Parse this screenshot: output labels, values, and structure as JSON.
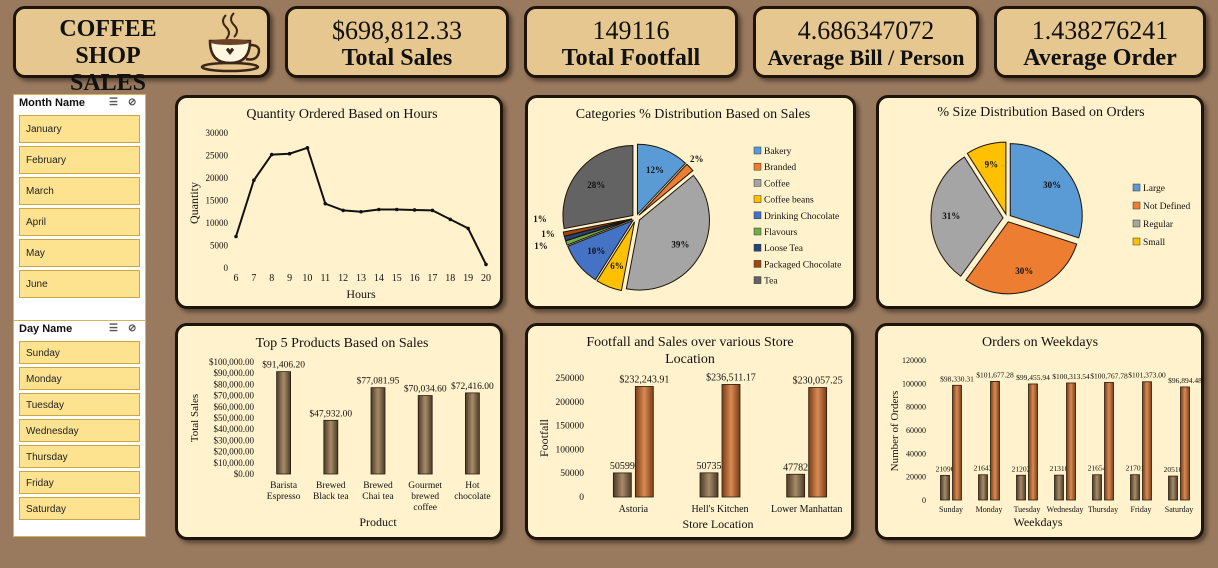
{
  "header": {
    "title_line1": "COFFEE SHOP",
    "title_line2": "SALES",
    "icon": "coffee-cup-icon",
    "kpis": [
      {
        "value": "$698,812.33",
        "label": "Total Sales"
      },
      {
        "value": "149116",
        "label": "Total Footfall"
      },
      {
        "value": "4.686347072",
        "label": "Average Bill / Person"
      },
      {
        "value": "1.438276241",
        "label": "Average Order"
      }
    ]
  },
  "slicers": {
    "month": {
      "title": "Month Name",
      "items": [
        "January",
        "February",
        "March",
        "April",
        "May",
        "June"
      ]
    },
    "day": {
      "title": "Day Name",
      "items": [
        "Sunday",
        "Monday",
        "Tuesday",
        "Wednesday",
        "Thursday",
        "Friday",
        "Saturday"
      ]
    }
  },
  "colors": {
    "line": "#111111",
    "bar_dark": "#7a654b",
    "bar_light": "#b5703f",
    "panel": "#fff2cc",
    "border": "#1e1409"
  },
  "chart_data": [
    {
      "type": "line",
      "title": "Quantity Ordered Based on Hours",
      "xlabel": "Hours",
      "ylabel": "Quantity",
      "x": [
        6,
        7,
        8,
        9,
        10,
        11,
        12,
        13,
        14,
        15,
        16,
        17,
        18,
        19,
        20
      ],
      "values": [
        7000,
        19500,
        25200,
        25400,
        26700,
        14300,
        12800,
        12500,
        13000,
        13000,
        12900,
        12800,
        10800,
        8800,
        800
      ],
      "ylim": [
        0,
        30000
      ],
      "yticks": [
        "0",
        "5000",
        "10000",
        "15000",
        "20000",
        "25000",
        "30000"
      ]
    },
    {
      "type": "pie",
      "title": "Categories % Distribution Based on Sales",
      "legend_position": "right",
      "series": [
        {
          "name": "Bakery",
          "value": 12,
          "label": "12%",
          "color": "#5b9bd5"
        },
        {
          "name": "Branded",
          "value": 2,
          "label": "2%",
          "color": "#ed7d31"
        },
        {
          "name": "Coffee",
          "value": 39,
          "label": "39%",
          "color": "#a5a5a5"
        },
        {
          "name": "Coffee beans",
          "value": 6,
          "label": "6%",
          "color": "#ffc000"
        },
        {
          "name": "Drinking Chocolate",
          "value": 10,
          "label": "10%",
          "color": "#4472c4"
        },
        {
          "name": "Flavours",
          "value": 1,
          "label": "1%",
          "color": "#70ad47"
        },
        {
          "name": "Loose Tea",
          "value": 1,
          "label": "1%",
          "color": "#264478"
        },
        {
          "name": "Packaged Chocolate",
          "value": 1,
          "label": "1%",
          "color": "#9e480e"
        },
        {
          "name": "Tea",
          "value": 28,
          "label": "28%",
          "color": "#636363"
        }
      ]
    },
    {
      "type": "pie",
      "title": "% Size Distribution Based on Orders",
      "legend_position": "right",
      "series": [
        {
          "name": "Large",
          "value": 30,
          "label": "30%",
          "color": "#5b9bd5"
        },
        {
          "name": "Not Defined",
          "value": 30,
          "label": "30%",
          "color": "#ed7d31"
        },
        {
          "name": "Regular",
          "value": 31,
          "label": "31%",
          "color": "#a5a5a5"
        },
        {
          "name": "Small",
          "value": 9,
          "label": "9%",
          "color": "#ffc000"
        }
      ]
    },
    {
      "type": "bar",
      "title": "Top 5 Products Based on Sales",
      "xlabel": "Product",
      "ylabel": "Total Sales",
      "categories": [
        "Barista Espresso",
        "Brewed Black tea",
        "Brewed Chai tea",
        "Gourmet brewed coffee",
        "Hot chocolate"
      ],
      "category_lines": [
        [
          "Barista",
          "Espresso"
        ],
        [
          "Brewed",
          "Black tea"
        ],
        [
          "Brewed",
          "Chai tea"
        ],
        [
          "Gourmet",
          "brewed",
          "coffee"
        ],
        [
          "Hot",
          "chocolate"
        ]
      ],
      "values": [
        91406.2,
        47932.0,
        77081.95,
        70034.6,
        72416.0
      ],
      "data_labels": [
        "$91,406.20",
        "$47,932.00",
        "$77,081.95",
        "$70,034.60",
        "$72,416.00"
      ],
      "ylim": [
        0,
        100000
      ],
      "yticks": [
        "$0.00",
        "$10,000.00",
        "$20,000.00",
        "$30,000.00",
        "$40,000.00",
        "$50,000.00",
        "$60,000.00",
        "$70,000.00",
        "$80,000.00",
        "$90,000.00",
        "$100,000.00"
      ]
    },
    {
      "type": "bar",
      "title_line1": "Footfall and Sales over various Store",
      "title_line2": "Location",
      "xlabel": "Store Location",
      "ylabel": "Footfall",
      "categories": [
        "Astoria",
        "Hell's Kitchen",
        "Lower Manhattan"
      ],
      "series": [
        {
          "values": [
            50599,
            50735,
            47782
          ],
          "data_labels": [
            "50599",
            "50735",
            "47782"
          ]
        },
        {
          "values": [
            232243.91,
            236511.17,
            230057.25
          ],
          "data_labels": [
            "$232,243.91",
            "$236,511.17",
            "$230,057.25"
          ]
        }
      ],
      "ylim": [
        0,
        250000
      ],
      "yticks": [
        "0",
        "50000",
        "100000",
        "150000",
        "200000",
        "250000"
      ]
    },
    {
      "type": "bar",
      "title": "Orders on Weekdays",
      "xlabel": "Weekdays",
      "ylabel": "Number of Orders",
      "categories": [
        "Sunday",
        "Monday",
        "Tuesday",
        "Wednesday",
        "Thursday",
        "Friday",
        "Saturday"
      ],
      "series": [
        {
          "values": [
            21096,
            21643,
            21202,
            21310,
            21654,
            21701,
            20510
          ],
          "data_labels": [
            "21096",
            "21643",
            "21202",
            "21310",
            "21654",
            "21701",
            "20510"
          ]
        },
        {
          "values": [
            98330.31,
            101677.28,
            99455.94,
            100313.54,
            100767.78,
            101373.0,
            96894.48
          ],
          "data_labels": [
            "$98,330.31",
            "$101,677.28",
            "$99,455.94",
            "$100,313.54",
            "$100,767.78",
            "$101,373.00",
            "$96,894.48"
          ]
        }
      ],
      "ylim": [
        0,
        120000
      ],
      "yticks": [
        "0",
        "20000",
        "40000",
        "60000",
        "80000",
        "100000",
        "120000"
      ]
    }
  ]
}
